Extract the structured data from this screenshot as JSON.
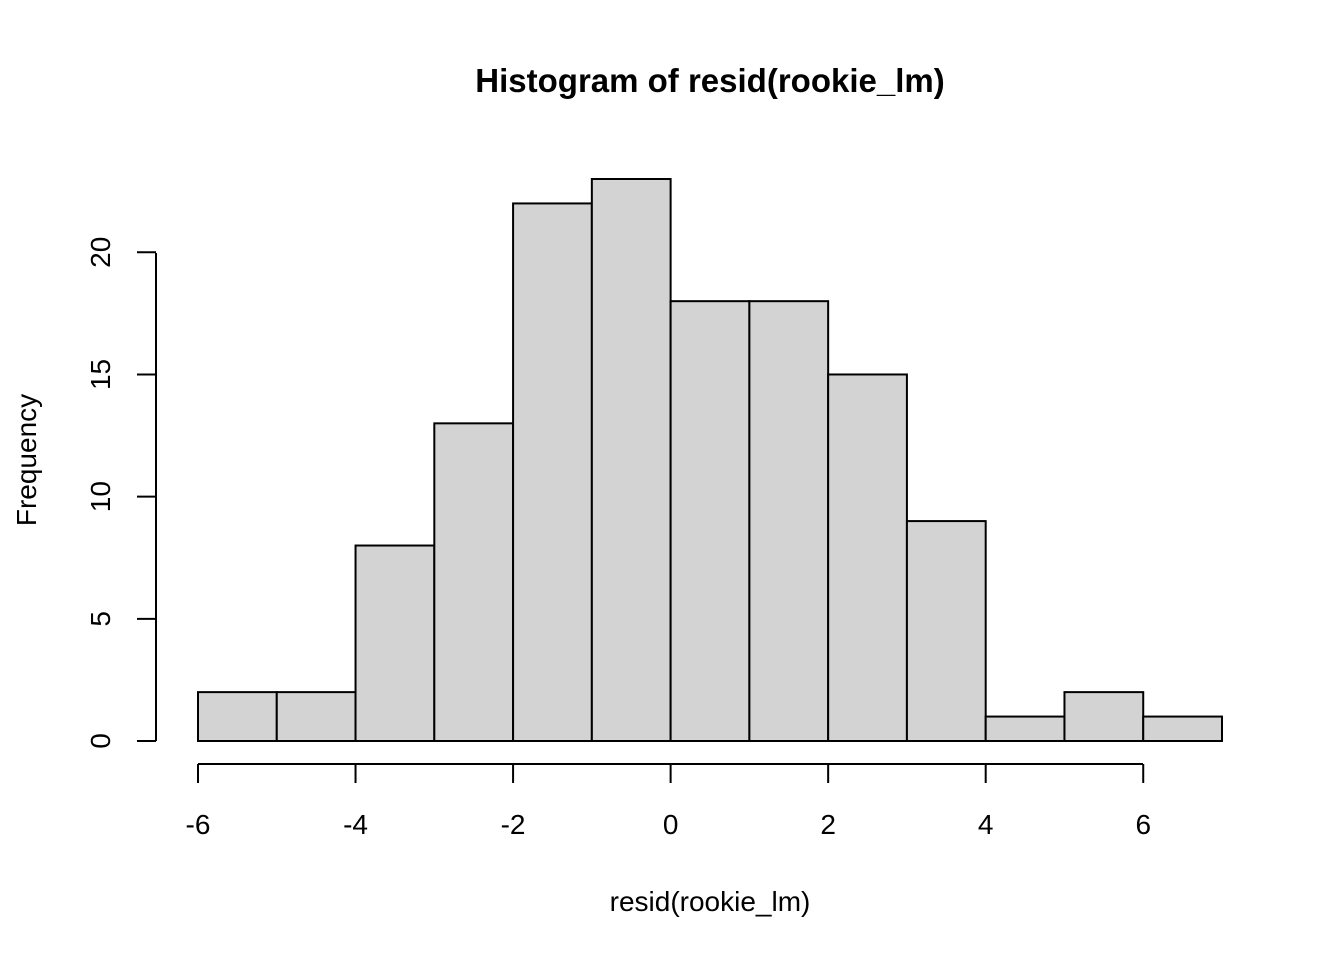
{
  "chart_data": {
    "type": "bar",
    "title": "Histogram of resid(rookie_lm)",
    "xlabel": "resid(rookie_lm)",
    "ylabel": "Frequency",
    "bin_edges": [
      -6,
      -5,
      -4,
      -3,
      -2,
      -1,
      0,
      1,
      2,
      3,
      4,
      5,
      6,
      7
    ],
    "values": [
      2,
      2,
      8,
      13,
      22,
      23,
      18,
      18,
      15,
      9,
      1,
      2,
      1
    ],
    "xlim": [
      -6,
      7
    ],
    "ylim": [
      0,
      23
    ],
    "x_ticks": [
      -6,
      -4,
      -2,
      0,
      2,
      4,
      6
    ],
    "x_tick_labels": [
      "-6",
      "-4",
      "-2",
      "0",
      "2",
      "4",
      "6"
    ],
    "y_ticks": [
      0,
      5,
      10,
      15,
      20
    ],
    "y_tick_labels": [
      "0",
      "5",
      "10",
      "15",
      "20"
    ],
    "grid": false,
    "bar_fill": "#d3d3d3",
    "bar_stroke": "#000000"
  }
}
